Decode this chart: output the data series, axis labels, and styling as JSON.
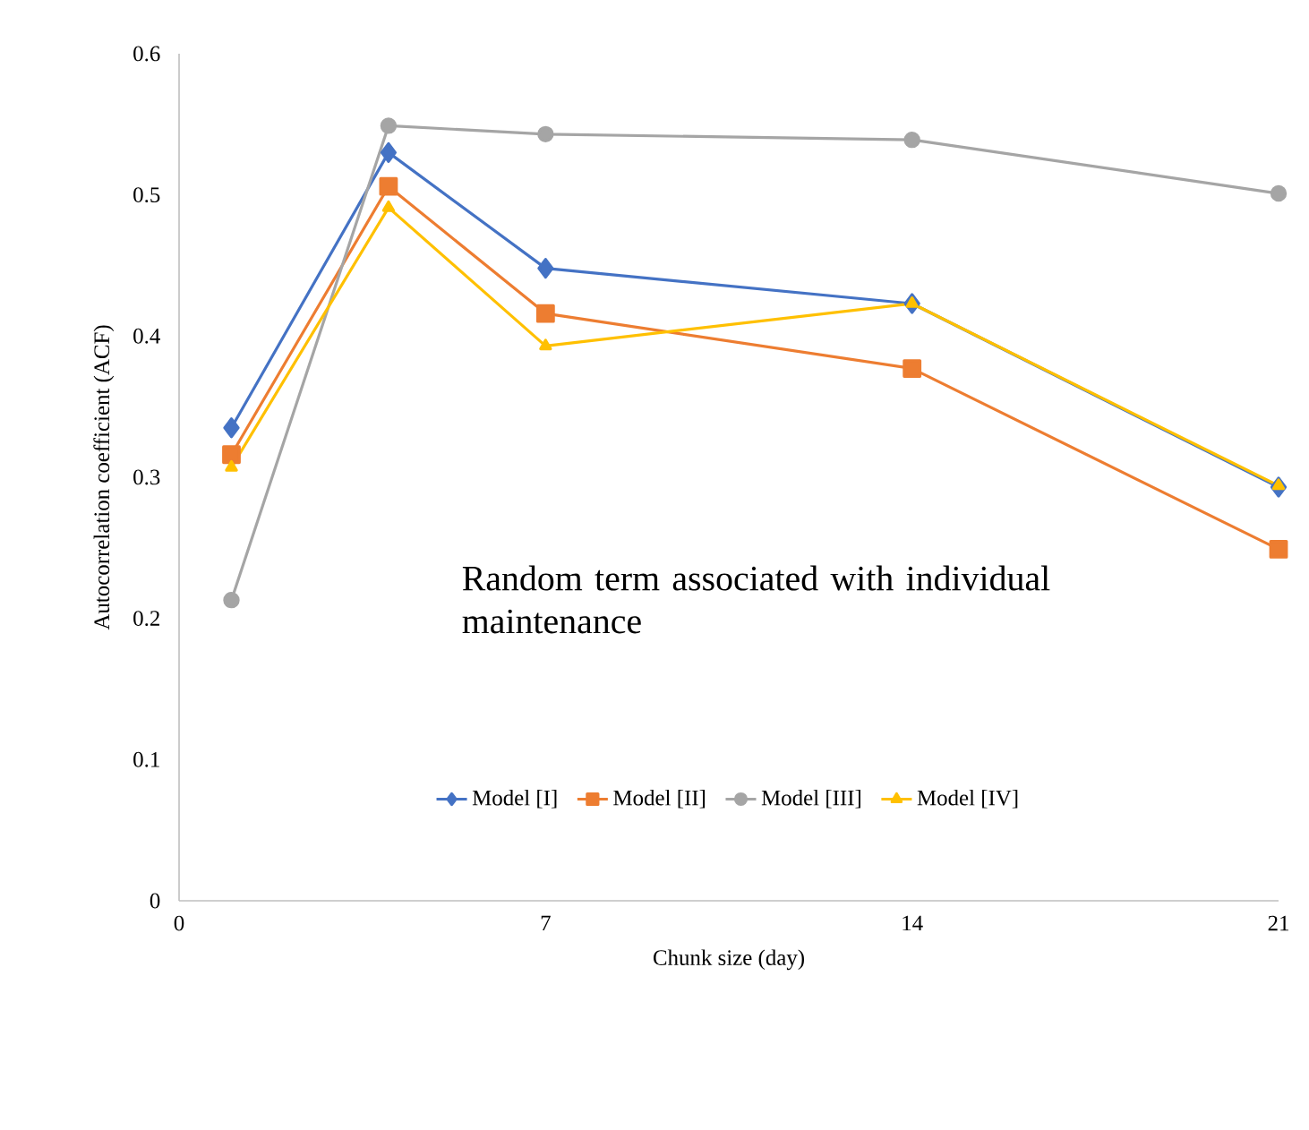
{
  "chart_data": {
    "type": "line",
    "xlabel": "Chunk size (day)",
    "ylabel": "Autocorrelation coefficient (ACF)",
    "x": [
      1,
      4,
      7,
      14,
      21
    ],
    "series": [
      {
        "name": "Model [I]",
        "color": "#4472c4",
        "marker": "diamond",
        "values": [
          0.335,
          0.53,
          0.448,
          0.423,
          0.293
        ]
      },
      {
        "name": "Model [II]",
        "color": "#ed7d31",
        "marker": "square",
        "values": [
          0.316,
          0.506,
          0.416,
          0.377,
          0.249
        ]
      },
      {
        "name": "Model [III]",
        "color": "#a5a5a5",
        "marker": "circle",
        "values": [
          0.213,
          0.549,
          0.543,
          0.539,
          0.501
        ]
      },
      {
        "name": "Model [IV]",
        "color": "#ffc000",
        "marker": "triangle",
        "values": [
          0.307,
          0.491,
          0.393,
          0.423,
          0.294
        ]
      }
    ],
    "xlim": [
      0,
      21
    ],
    "xticks": [
      0,
      7,
      14,
      21
    ],
    "ylim": [
      0,
      0.6
    ],
    "yticks": [
      0,
      0.1,
      0.2,
      0.3,
      0.4,
      0.5,
      0.6
    ],
    "grid": false,
    "legend": "bottom",
    "line_style": "solid",
    "annotations": [
      "Random term associated with individual maintenance"
    ]
  }
}
